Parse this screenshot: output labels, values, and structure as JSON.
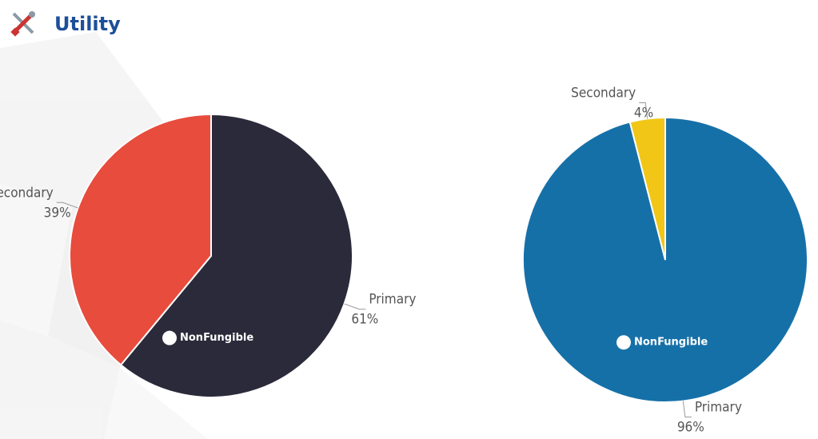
{
  "title": "Utility",
  "chart_data": [
    {
      "type": "pie",
      "categories": [
        "Primary",
        "Secondary"
      ],
      "values": [
        61,
        39
      ],
      "value_labels": [
        "61%",
        "39%"
      ],
      "colors": [
        "#2b2a3a",
        "#e84c3d"
      ],
      "watermark": "NonFungible"
    },
    {
      "type": "pie",
      "categories": [
        "Primary",
        "Secondary"
      ],
      "values": [
        96,
        4
      ],
      "value_labels": [
        "96%",
        "4%"
      ],
      "colors": [
        "#1670a8",
        "#f1c617"
      ],
      "watermark": "NonFungible"
    }
  ]
}
